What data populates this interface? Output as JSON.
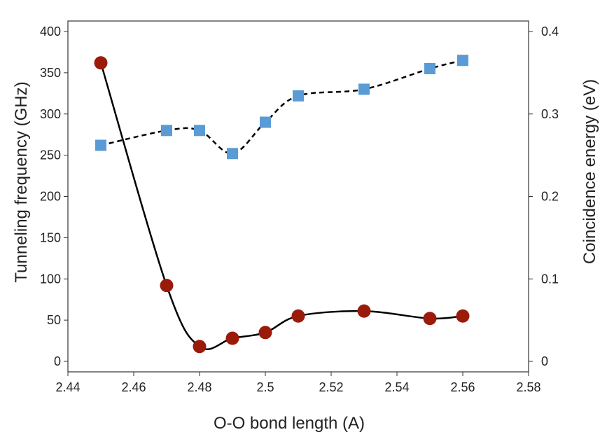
{
  "chart_data": {
    "type": "line",
    "title": "",
    "xlabel": "O-O bond length (A)",
    "ylabel_left": "Tunneling frequency (GHz)",
    "ylabel_right": "Coincidence energy (eV)",
    "xlim": [
      2.44,
      2.58
    ],
    "ylim_left": [
      0,
      400
    ],
    "ylim_right": [
      0,
      0.4
    ],
    "x_ticks": [
      "2.44",
      "2.46",
      "2.48",
      "2.5",
      "2.52",
      "2.54",
      "2.56",
      "2.58"
    ],
    "y_left_ticks": [
      "0",
      "50",
      "100",
      "150",
      "200",
      "250",
      "300",
      "350",
      "400"
    ],
    "y_right_ticks": [
      "0",
      "0.1",
      "0.2",
      "0.3",
      "0.4"
    ],
    "grid": false,
    "series": [
      {
        "axis": "left",
        "marker": "circle",
        "line_style": "solid",
        "color": "#9B1B0B",
        "line_color": "#000000",
        "points": [
          [
            2.45,
            362
          ],
          [
            2.47,
            92
          ],
          [
            2.48,
            18
          ],
          [
            2.49,
            28
          ],
          [
            2.5,
            35
          ],
          [
            2.51,
            55
          ],
          [
            2.53,
            61
          ],
          [
            2.55,
            52
          ],
          [
            2.56,
            55
          ]
        ]
      },
      {
        "axis": "right",
        "marker": "square",
        "line_style": "dashed",
        "color": "#5B9BD5",
        "line_color": "#000000",
        "points": [
          [
            2.45,
            0.262
          ],
          [
            2.47,
            0.28
          ],
          [
            2.48,
            0.28
          ],
          [
            2.49,
            0.252
          ],
          [
            2.5,
            0.29
          ],
          [
            2.51,
            0.322
          ],
          [
            2.53,
            0.33
          ],
          [
            2.55,
            0.355
          ],
          [
            2.56,
            0.365
          ]
        ]
      }
    ]
  }
}
